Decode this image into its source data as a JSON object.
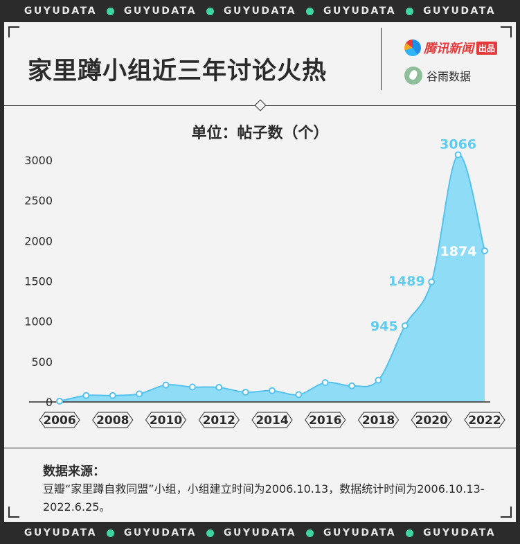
{
  "ticker": {
    "items": [
      "GUYUDATA",
      "GUYUDATA",
      "GUYUDATA",
      "GUYUDATA",
      "GUYUDATA"
    ]
  },
  "header": {
    "title": "家里蹲小组近三年讨论火热",
    "brand1": {
      "name": "腾讯新闻",
      "badge": "出品"
    },
    "brand2": {
      "name": "谷雨数据"
    }
  },
  "colors": {
    "accent": "#5ecdf2",
    "area_fill": "#8fdcf7",
    "point_stroke": "#55c2ee",
    "background": "#f3f3f3",
    "frame": "#2b2b2b"
  },
  "source": {
    "title": "数据来源：",
    "text": "豆瓣“家里蹲自救同盟”小组，小组建立时间为2006.10.13，数据统计时间为2006.10.13-2022.6.25。"
  },
  "chart_data": {
    "type": "area",
    "unit_label": "单位：帖子数（个）",
    "x": [
      2006.0,
      2007.0,
      2008.0,
      2009.0,
      2010.0,
      2011.0,
      2012.0,
      2013.0,
      2014.0,
      2015.0,
      2016.0,
      2017.0,
      2018.0,
      2019.0,
      2020.0,
      2021.0,
      2022.0
    ],
    "y": [
      10,
      80,
      80,
      100,
      210,
      185,
      180,
      120,
      140,
      90,
      240,
      200,
      270,
      945,
      1489,
      3066,
      1874
    ],
    "x_tick_labels": [
      "2006",
      "2008",
      "2010",
      "2012",
      "2014",
      "2016",
      "2018",
      "2020",
      "2022"
    ],
    "y_ticks": [
      0,
      500,
      1000,
      1500,
      2000,
      2500,
      3000
    ],
    "ylim": [
      0,
      3000
    ],
    "data_labels": [
      {
        "index": 13,
        "text": "945"
      },
      {
        "index": 14,
        "text": "1489"
      },
      {
        "index": 15,
        "text": "3066"
      },
      {
        "index": 16,
        "text": "1874"
      }
    ],
    "grid": false
  }
}
